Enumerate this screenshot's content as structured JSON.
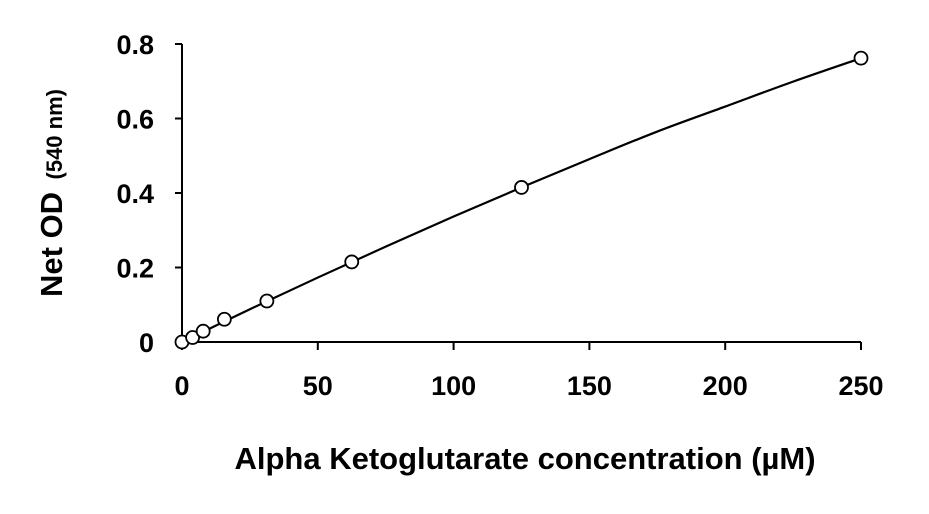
{
  "chart_data": {
    "type": "scatter",
    "title": "",
    "xlabel": "Alpha Ketoglutarate concentration (µM)",
    "ylabel": {
      "main": "Net OD",
      "unit": "(540 nm)"
    },
    "xlim": [
      0,
      250
    ],
    "ylim": [
      0,
      0.8
    ],
    "x_ticks": [
      0,
      50,
      100,
      150,
      200,
      250
    ],
    "x_tick_labels": [
      "0",
      "50",
      "100",
      "150",
      "200",
      "250"
    ],
    "y_ticks": [
      0,
      0.2,
      0.4,
      0.6,
      0.8
    ],
    "y_tick_labels": [
      "0",
      "0.2",
      "0.4",
      "0.6",
      "0.8"
    ],
    "grid": false,
    "legend": "none",
    "colors": {
      "axis": "#000000",
      "marker_stroke": "#000000",
      "marker_fill": "#ffffff",
      "curve": "#000000"
    },
    "series": [
      {
        "marker": "open-circle",
        "points": [
          {
            "x": 0,
            "y": 0.0
          },
          {
            "x": 3.9,
            "y": 0.012
          },
          {
            "x": 7.8,
            "y": 0.029
          },
          {
            "x": 15.6,
            "y": 0.061
          },
          {
            "x": 31.25,
            "y": 0.11
          },
          {
            "x": 62.5,
            "y": 0.215
          },
          {
            "x": 125,
            "y": 0.415
          },
          {
            "x": 250,
            "y": 0.762
          }
        ]
      }
    ],
    "fit_curve": {
      "type": "smooth",
      "points": [
        {
          "x": 0,
          "y": 0.0
        },
        {
          "x": 25,
          "y": 0.088
        },
        {
          "x": 50,
          "y": 0.173
        },
        {
          "x": 75,
          "y": 0.256
        },
        {
          "x": 100,
          "y": 0.337
        },
        {
          "x": 125,
          "y": 0.415
        },
        {
          "x": 150,
          "y": 0.491
        },
        {
          "x": 175,
          "y": 0.565
        },
        {
          "x": 200,
          "y": 0.632
        },
        {
          "x": 225,
          "y": 0.699
        },
        {
          "x": 250,
          "y": 0.762
        }
      ]
    }
  }
}
